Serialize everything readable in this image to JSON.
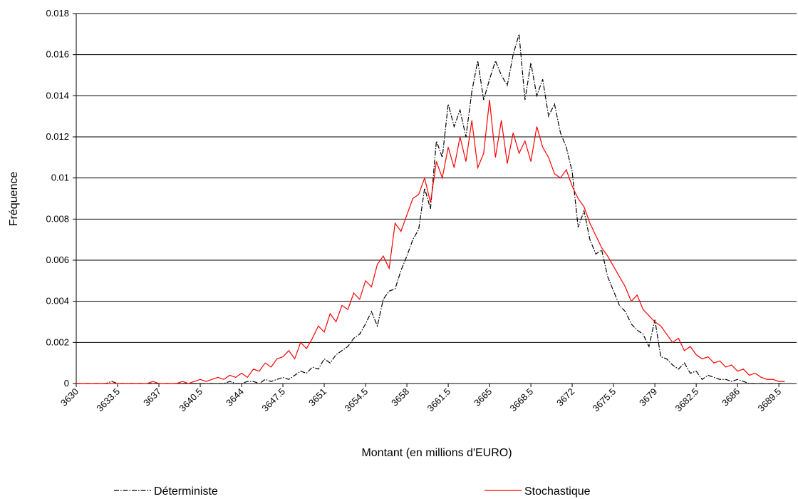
{
  "chart_data": {
    "type": "line",
    "xlabel": "Montant (en millions d'EURO)",
    "ylabel": "Fréquence",
    "x": [
      3630,
      3630.5,
      3631,
      3631.5,
      3632,
      3632.5,
      3633,
      3633.5,
      3634,
      3634.5,
      3635,
      3635.5,
      3636,
      3636.5,
      3637,
      3637.5,
      3638,
      3638.5,
      3639,
      3639.5,
      3640,
      3640.5,
      3641,
      3641.5,
      3642,
      3642.5,
      3643,
      3643.5,
      3644,
      3644.5,
      3645,
      3645.5,
      3646,
      3646.5,
      3647,
      3647.5,
      3648,
      3648.5,
      3649,
      3649.5,
      3650,
      3650.5,
      3651,
      3651.5,
      3652,
      3652.5,
      3653,
      3653.5,
      3654,
      3654.5,
      3655,
      3655.5,
      3656,
      3656.5,
      3657,
      3657.5,
      3658,
      3658.5,
      3659,
      3659.5,
      3660,
      3660.5,
      3661,
      3661.5,
      3662,
      3662.5,
      3663,
      3663.5,
      3664,
      3664.5,
      3665,
      3665.5,
      3666,
      3666.5,
      3667,
      3667.5,
      3668,
      3668.5,
      3669,
      3669.5,
      3670,
      3670.5,
      3671,
      3671.5,
      3672,
      3672.5,
      3673,
      3673.5,
      3674,
      3674.5,
      3675,
      3675.5,
      3676,
      3676.5,
      3677,
      3677.5,
      3678,
      3678.5,
      3679,
      3679.5,
      3680,
      3680.5,
      3681,
      3681.5,
      3682,
      3682.5,
      3683,
      3683.5,
      3684,
      3684.5,
      3685,
      3685.5,
      3686,
      3686.5,
      3687,
      3687.5,
      3688,
      3688.5,
      3689,
      3689.5,
      3690
    ],
    "series": [
      {
        "name": "Déterministe",
        "color": "#000000",
        "dash": "dashdot",
        "values": [
          0,
          0,
          0,
          0,
          0,
          0,
          0.0001,
          0,
          0,
          0,
          0,
          0,
          0,
          0,
          0,
          0,
          0,
          0,
          0,
          0,
          0,
          0,
          0,
          0,
          0,
          0,
          0.0001,
          0,
          0,
          0.0001,
          0.0001,
          0,
          0.0002,
          0.0001,
          0.0002,
          0.0003,
          0.0002,
          0.0004,
          0.0006,
          0.0005,
          0.0008,
          0.0007,
          0.0012,
          0.001,
          0.0014,
          0.0016,
          0.0018,
          0.0022,
          0.0024,
          0.0029,
          0.0035,
          0.0028,
          0.0041,
          0.0045,
          0.0046,
          0.0055,
          0.0062,
          0.007,
          0.0075,
          0.0095,
          0.0085,
          0.0118,
          0.011,
          0.0136,
          0.0125,
          0.0133,
          0.012,
          0.0142,
          0.0157,
          0.0138,
          0.0148,
          0.0157,
          0.015,
          0.0145,
          0.016,
          0.017,
          0.0138,
          0.0156,
          0.014,
          0.0148,
          0.013,
          0.0136,
          0.0122,
          0.0115,
          0.0103,
          0.0076,
          0.0084,
          0.007,
          0.0063,
          0.0065,
          0.0052,
          0.0045,
          0.0038,
          0.0035,
          0.0029,
          0.0026,
          0.0024,
          0.0018,
          0.0031,
          0.0013,
          0.0012,
          0.0009,
          0.0007,
          0.001,
          0.0005,
          0.0006,
          0.0002,
          0.0004,
          0.0003,
          0.0002,
          0.0002,
          0.0001,
          0.0002,
          0.0001,
          0,
          0,
          0,
          0,
          0,
          0,
          0
        ]
      },
      {
        "name": "Stochastique",
        "color": "#ff0000",
        "dash": "solid",
        "values": [
          0,
          0,
          0,
          0,
          0,
          0,
          0,
          0,
          0,
          0,
          0,
          0,
          0,
          0.0001,
          0,
          0,
          0,
          0,
          0.0001,
          0,
          0.0001,
          0.0002,
          0.0001,
          0.0002,
          0.0003,
          0.0002,
          0.0004,
          0.0003,
          0.0005,
          0.0003,
          0.0007,
          0.0006,
          0.001,
          0.0008,
          0.0012,
          0.0013,
          0.0016,
          0.0012,
          0.002,
          0.0017,
          0.0022,
          0.0028,
          0.0025,
          0.0034,
          0.003,
          0.0038,
          0.0036,
          0.0044,
          0.0041,
          0.005,
          0.0047,
          0.0058,
          0.0062,
          0.0056,
          0.0078,
          0.0074,
          0.0082,
          0.009,
          0.0092,
          0.01,
          0.0088,
          0.0108,
          0.01,
          0.0115,
          0.0105,
          0.012,
          0.0108,
          0.0128,
          0.0105,
          0.0112,
          0.0138,
          0.011,
          0.0128,
          0.0107,
          0.0122,
          0.0112,
          0.0118,
          0.0108,
          0.0125,
          0.0115,
          0.011,
          0.0102,
          0.01,
          0.0104,
          0.0096,
          0.009,
          0.0086,
          0.0078,
          0.0072,
          0.0066,
          0.0062,
          0.0057,
          0.0052,
          0.0047,
          0.004,
          0.0043,
          0.0036,
          0.0033,
          0.003,
          0.0028,
          0.0024,
          0.002,
          0.0022,
          0.0016,
          0.0018,
          0.0014,
          0.0012,
          0.0013,
          0.001,
          0.0011,
          0.0008,
          0.0009,
          0.0006,
          0.0007,
          0.0004,
          0.0005,
          0.0003,
          0.0002,
          0.0002,
          0.0001,
          0.0001
        ]
      }
    ],
    "xlim": [
      3630,
      3691
    ],
    "xticks": [
      3630,
      3633.5,
      3637,
      3640.5,
      3644,
      3647.5,
      3651,
      3654.5,
      3658,
      3661.5,
      3665,
      3668.5,
      3672,
      3675.5,
      3679,
      3682.5,
      3686,
      3689.5
    ],
    "ylim": [
      0,
      0.018
    ],
    "yticks": [
      0,
      0.002,
      0.004,
      0.006,
      0.008,
      0.01,
      0.012,
      0.014,
      0.016,
      0.018
    ],
    "grid": true,
    "legend": "bottom"
  }
}
